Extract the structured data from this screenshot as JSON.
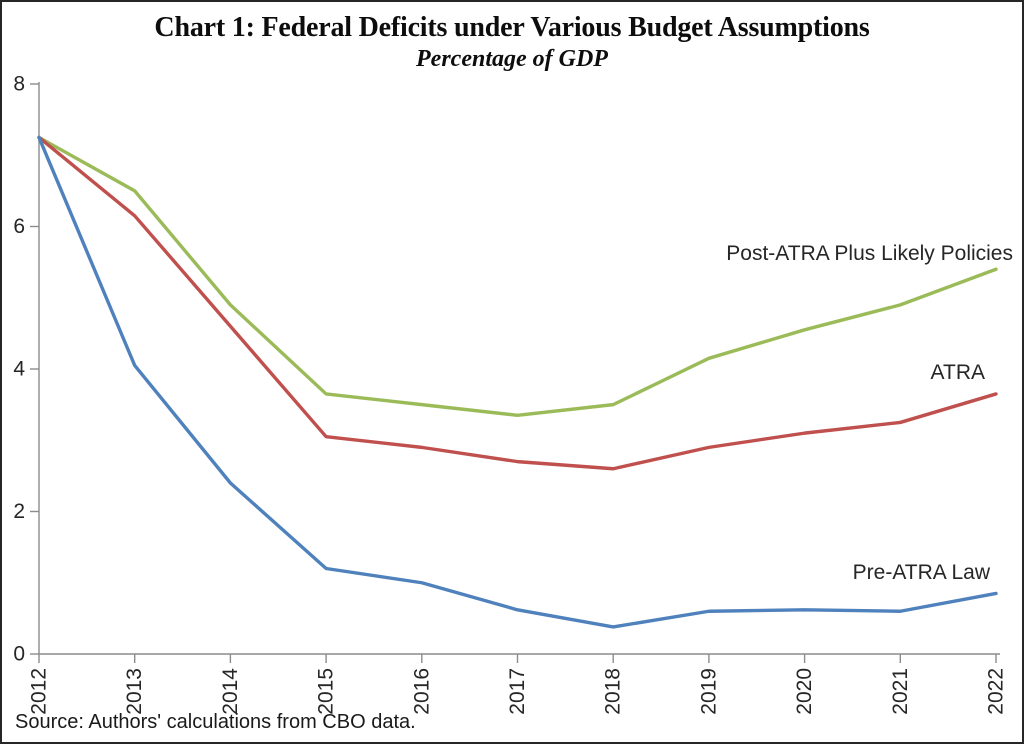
{
  "page": {
    "title": "Chart 1: Federal Deficits under Various Budget Assumptions",
    "subtitle": "Percentage of GDP",
    "source": "Source: Authors' calculations from CBO data."
  },
  "colors": {
    "pre_atra": "#4F81BD",
    "atra": "#C0504D",
    "post_atra": "#9BBB59",
    "axis": "#8C8C8C",
    "text": "#262626"
  },
  "chart_data": {
    "type": "line",
    "title": "Chart 1: Federal Deficits under Various Budget Assumptions",
    "subtitle": "Percentage of GDP",
    "xlabel": "",
    "ylabel": "Percentage of GDP",
    "x": [
      2012,
      2013,
      2014,
      2015,
      2016,
      2017,
      2018,
      2019,
      2020,
      2021,
      2022
    ],
    "series": [
      {
        "name": "Post-ATRA Plus Likely Policies",
        "color_key": "post_atra",
        "values": [
          7.25,
          6.5,
          4.9,
          3.65,
          3.5,
          3.35,
          3.5,
          4.15,
          4.55,
          4.9,
          5.4
        ]
      },
      {
        "name": "ATRA",
        "color_key": "atra",
        "values": [
          7.25,
          6.15,
          4.6,
          3.05,
          2.9,
          2.7,
          2.6,
          2.9,
          3.1,
          3.25,
          3.65
        ]
      },
      {
        "name": "Pre-ATRA Law",
        "color_key": "pre_atra",
        "values": [
          7.25,
          4.05,
          2.4,
          1.2,
          1.0,
          0.62,
          0.38,
          0.6,
          0.62,
          0.6,
          0.85
        ]
      }
    ],
    "ylim": [
      0,
      8
    ],
    "yticks": [
      0,
      2,
      4,
      6,
      8
    ],
    "grid": false,
    "legend": "inline-labels-right",
    "x_tick_rotation_deg": 90,
    "source": "Source: Authors' calculations from CBO data."
  }
}
